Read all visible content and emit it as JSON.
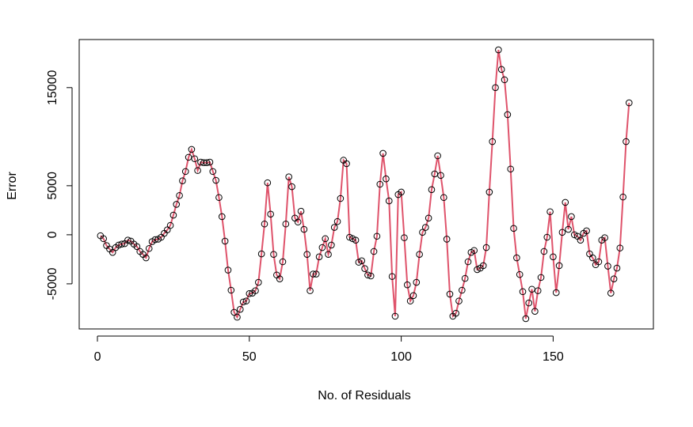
{
  "chart_data": {
    "type": "line",
    "xlabel": "No. of Residuals",
    "ylabel": "Error",
    "x": [
      1,
      2,
      3,
      4,
      5,
      6,
      7,
      8,
      9,
      10,
      11,
      12,
      13,
      14,
      15,
      16,
      17,
      18,
      19,
      20,
      21,
      22,
      23,
      24,
      25,
      26,
      27,
      28,
      29,
      30,
      31,
      32,
      33,
      34,
      35,
      36,
      37,
      38,
      39,
      40,
      41,
      42,
      43,
      44,
      45,
      46,
      47,
      48,
      49,
      50,
      51,
      52,
      53,
      54,
      55,
      56,
      57,
      58,
      59,
      60,
      61,
      62,
      63,
      64,
      65,
      66,
      67,
      68,
      69,
      70,
      71,
      72,
      73,
      74,
      75,
      76,
      77,
      78,
      79,
      80,
      81,
      82,
      83,
      84,
      85,
      86,
      87,
      88,
      89,
      90,
      91,
      92,
      93,
      94,
      95,
      96,
      97,
      98,
      99,
      100,
      101,
      102,
      103,
      104,
      105,
      106,
      107,
      108,
      109,
      110,
      111,
      112,
      113,
      114,
      115,
      116,
      117,
      118,
      119,
      120,
      121,
      122,
      123,
      124,
      125,
      126,
      127,
      128,
      129,
      130,
      131,
      132,
      133,
      134,
      135,
      136,
      137,
      138,
      139,
      140,
      141,
      142,
      143,
      144,
      145,
      146,
      147,
      148,
      149,
      150,
      151,
      152,
      153,
      154,
      155,
      156,
      157,
      158,
      159,
      160,
      161,
      162,
      163,
      164,
      165,
      166,
      167,
      168,
      169,
      170,
      171,
      172,
      173,
      174,
      175
    ],
    "values": [
      -100,
      -400,
      -1100,
      -1450,
      -1800,
      -1300,
      -1050,
      -950,
      -900,
      -550,
      -650,
      -950,
      -1200,
      -1700,
      -2000,
      -2350,
      -1400,
      -700,
      -500,
      -450,
      -250,
      150,
      500,
      950,
      2000,
      3100,
      4000,
      5500,
      6450,
      7900,
      8700,
      7750,
      6550,
      7400,
      7350,
      7350,
      7400,
      6450,
      5550,
      3800,
      1850,
      -650,
      -3600,
      -5650,
      -7900,
      -8400,
      -7600,
      -6850,
      -6750,
      -6000,
      -5950,
      -5700,
      -4850,
      -1950,
      1100,
      5300,
      2100,
      -2000,
      -4100,
      -4500,
      -2750,
      1100,
      5900,
      4900,
      1700,
      1300,
      2400,
      550,
      -2000,
      -5700,
      -4000,
      -4000,
      -2250,
      -1300,
      -400,
      -2000,
      -1050,
      750,
      1350,
      3700,
      7600,
      7250,
      -250,
      -400,
      -550,
      -2800,
      -2650,
      -3450,
      -4100,
      -4200,
      -1700,
      -150,
      5150,
      8300,
      5700,
      3450,
      -4250,
      -8300,
      4100,
      4350,
      -300,
      -5100,
      -6750,
      -6200,
      -4850,
      -2000,
      250,
      750,
      1700,
      4600,
      6200,
      8050,
      6050,
      3800,
      -450,
      -6050,
      -8300,
      -8000,
      -6750,
      -5650,
      -4450,
      -2750,
      -1800,
      -1600,
      -3550,
      -3400,
      -3150,
      -1300,
      4350,
      9500,
      15000,
      18850,
      16850,
      15800,
      12250,
      6700,
      650,
      -2350,
      -4050,
      -5800,
      -8550,
      -6950,
      -5550,
      -7800,
      -5700,
      -4350,
      -1700,
      -250,
      2350,
      -2250,
      -5900,
      -3150,
      250,
      3300,
      550,
      1850,
      0,
      -150,
      -550,
      150,
      400,
      -1950,
      -2350,
      -3050,
      -2750,
      -550,
      -300,
      -3200,
      -5950,
      -4500,
      -3400,
      -1350,
      3850,
      9500,
      13450
    ],
    "color": "#df536b",
    "marker_color": "#000000",
    "xlim": [
      -6,
      183
    ],
    "ylim": [
      -9600,
      19900
    ],
    "xticks": [
      0,
      50,
      100,
      150
    ],
    "yticks": [
      -5000,
      0,
      5000,
      15000
    ]
  }
}
